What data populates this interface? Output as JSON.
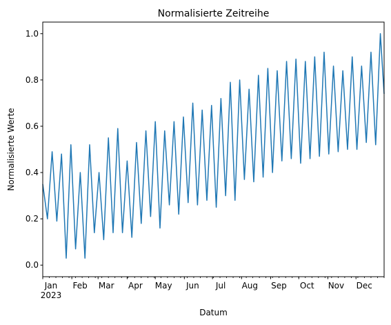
{
  "chart_data": {
    "type": "line",
    "title": "Normalisierte Zeitreihe",
    "xlabel": "Datum",
    "ylabel": "Normalisierte Werte",
    "ylim": [
      -0.05,
      1.05
    ],
    "y_ticks": [
      "0.0",
      "0.2",
      "0.4",
      "0.6",
      "0.8",
      "1.0"
    ],
    "x_range": [
      "2023-01-01",
      "2023-12-31"
    ],
    "x_ticks": [
      {
        "date": "2023-01-01",
        "label": "Jan",
        "sublabel": "2023"
      },
      {
        "date": "2023-02-01",
        "label": "Feb"
      },
      {
        "date": "2023-03-01",
        "label": "Mar"
      },
      {
        "date": "2023-04-01",
        "label": "Apr"
      },
      {
        "date": "2023-05-01",
        "label": "May"
      },
      {
        "date": "2023-06-01",
        "label": "Jun"
      },
      {
        "date": "2023-07-01",
        "label": "Jul"
      },
      {
        "date": "2023-08-01",
        "label": "Aug"
      },
      {
        "date": "2023-09-01",
        "label": "Sep"
      },
      {
        "date": "2023-10-01",
        "label": "Oct"
      },
      {
        "date": "2023-11-01",
        "label": "Nov"
      },
      {
        "date": "2023-12-01",
        "label": "Dec"
      }
    ],
    "grid": false,
    "color": "#1f77b4",
    "series": [
      {
        "x": [
          "2023-01-01",
          "2023-01-06",
          "2023-01-11",
          "2023-01-16",
          "2023-01-21",
          "2023-01-26",
          "2023-01-31",
          "2023-02-05",
          "2023-02-10",
          "2023-02-15",
          "2023-02-20",
          "2023-02-25",
          "2023-03-02",
          "2023-03-07",
          "2023-03-12",
          "2023-03-17",
          "2023-03-22",
          "2023-03-27",
          "2023-04-01",
          "2023-04-06",
          "2023-04-11",
          "2023-04-16",
          "2023-04-21",
          "2023-04-26",
          "2023-05-01",
          "2023-05-06",
          "2023-05-11",
          "2023-05-16",
          "2023-05-21",
          "2023-05-26",
          "2023-05-31",
          "2023-06-05",
          "2023-06-10",
          "2023-06-15",
          "2023-06-20",
          "2023-06-25",
          "2023-06-30",
          "2023-07-05",
          "2023-07-10",
          "2023-07-15",
          "2023-07-20",
          "2023-07-25",
          "2023-07-30",
          "2023-08-04",
          "2023-08-09",
          "2023-08-14",
          "2023-08-19",
          "2023-08-24",
          "2023-08-29",
          "2023-09-03",
          "2023-09-08",
          "2023-09-13",
          "2023-09-18",
          "2023-09-23",
          "2023-09-28",
          "2023-10-03",
          "2023-10-08",
          "2023-10-13",
          "2023-10-18",
          "2023-10-23",
          "2023-10-28",
          "2023-11-02",
          "2023-11-07",
          "2023-11-12",
          "2023-11-17",
          "2023-11-22",
          "2023-11-27",
          "2023-12-02",
          "2023-12-07",
          "2023-12-12",
          "2023-12-17",
          "2023-12-22",
          "2023-12-27",
          "2023-12-31"
        ],
        "y": [
          0.35,
          0.2,
          0.49,
          0.19,
          0.48,
          0.03,
          0.52,
          0.07,
          0.4,
          0.03,
          0.52,
          0.14,
          0.4,
          0.11,
          0.55,
          0.14,
          0.59,
          0.14,
          0.45,
          0.12,
          0.53,
          0.18,
          0.58,
          0.21,
          0.62,
          0.16,
          0.58,
          0.26,
          0.62,
          0.22,
          0.64,
          0.27,
          0.7,
          0.26,
          0.67,
          0.28,
          0.69,
          0.25,
          0.72,
          0.3,
          0.79,
          0.28,
          0.8,
          0.37,
          0.76,
          0.36,
          0.82,
          0.38,
          0.85,
          0.4,
          0.84,
          0.45,
          0.88,
          0.46,
          0.89,
          0.44,
          0.88,
          0.46,
          0.9,
          0.47,
          0.92,
          0.48,
          0.86,
          0.49,
          0.84,
          0.5,
          0.9,
          0.5,
          0.86,
          0.53,
          0.92,
          0.52,
          1.0,
          0.74
        ]
      }
    ]
  }
}
